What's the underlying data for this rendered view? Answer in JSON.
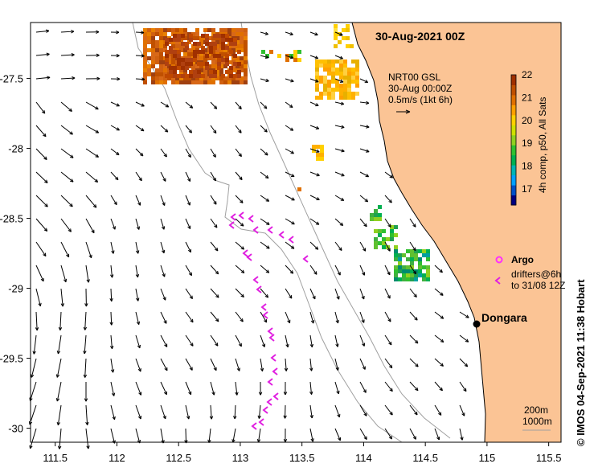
{
  "title": "30-Aug-2021 00Z",
  "info_box": {
    "line1": "NRT00 GSL",
    "line2": "30-Aug 00:00Z",
    "line3": "0.5m/s (1kt 6h)"
  },
  "colorbar": {
    "ticks": [
      "22",
      "21",
      "20",
      "19",
      "18",
      "17"
    ],
    "label": "4h comp, p50, All Sats",
    "colors": [
      "#000080",
      "#0050c8",
      "#00a0ff",
      "#00b4b4",
      "#00b050",
      "#30c030",
      "#90d020",
      "#d0e000",
      "#ffd000",
      "#ffa000",
      "#e07000",
      "#c05000",
      "#a03000"
    ]
  },
  "legend": {
    "argo_label": "Argo",
    "drifters_label": "drifters@6h",
    "drifters_sub": "to 31/08 12Z",
    "argo_color": "#ff30ff",
    "drifter_color": "#e020e0"
  },
  "place": {
    "name": "Dongara"
  },
  "isobaths": {
    "label1": "200m",
    "label2": "1000m"
  },
  "axes": {
    "x_ticks": [
      "111.5",
      "112",
      "112.5",
      "113",
      "113.5",
      "114",
      "114.5",
      "115",
      "115.5"
    ],
    "y_ticks": [
      "-27.5",
      "-28",
      "-28.5",
      "-29",
      "-29.5",
      "-30"
    ],
    "xlim": [
      111.3,
      115.6
    ],
    "ylim": [
      -30.1,
      -27.1
    ]
  },
  "footer": {
    "copyright": "© IMOS 04-Sep-2021 11:38 Hobart"
  },
  "land_color": "#fbc495"
}
